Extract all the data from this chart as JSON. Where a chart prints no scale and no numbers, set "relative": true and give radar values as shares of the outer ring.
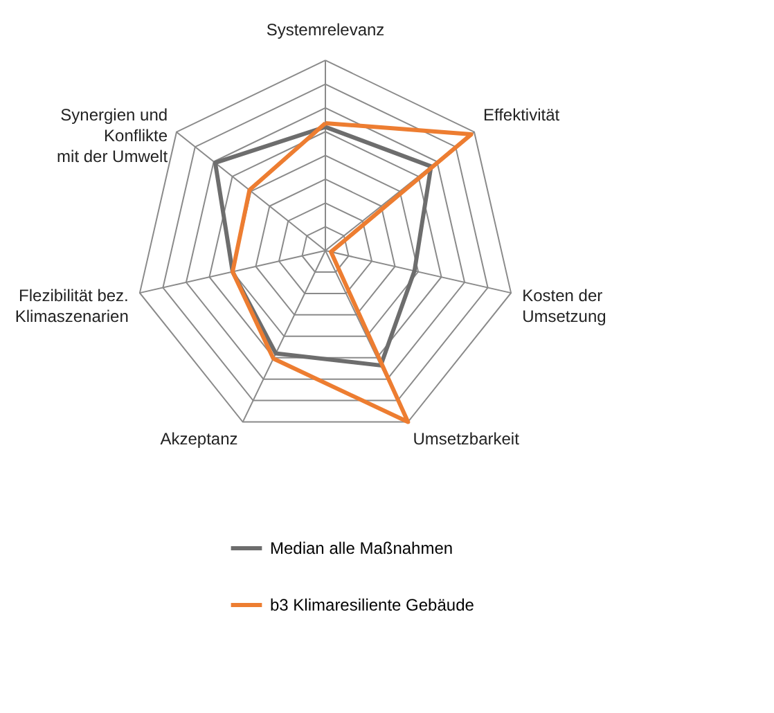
{
  "chart_data": {
    "type": "radar",
    "relative": true,
    "grid": true,
    "legend": "bottom",
    "categories": [
      "Systemrelevanz",
      "Effektivität",
      "Kosten der\nUmsetzung",
      "Umsetzbarkeit",
      "Akzeptanz",
      "Flezibilität bez.\nKlimaszenarien",
      "Synergien und\nKonflikte\nmit der Umwelt"
    ],
    "series": [
      {
        "name": "Median alle Maßnahmen",
        "color": "#6d6d6d",
        "values": [
          0.65,
          0.71,
          0.48,
          0.67,
          0.6,
          0.5,
          0.74
        ]
      },
      {
        "name": "b3 Klimaresiliente Gebäude",
        "color": "#ed7d31",
        "values": [
          0.67,
          0.98,
          0.03,
          1.0,
          0.63,
          0.5,
          0.51
        ]
      }
    ]
  }
}
